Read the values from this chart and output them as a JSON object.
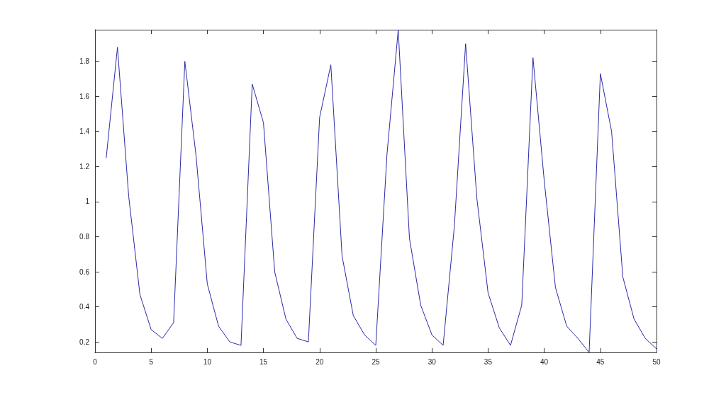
{
  "chart_data": {
    "type": "line",
    "x": [
      1,
      2,
      3,
      4,
      5,
      6,
      7,
      8,
      9,
      10,
      11,
      12,
      13,
      14,
      15,
      16,
      17,
      18,
      19,
      20,
      21,
      22,
      23,
      24,
      25,
      26,
      27,
      28,
      29,
      30,
      31,
      32,
      33,
      34,
      35,
      36,
      37,
      38,
      39,
      40,
      41,
      42,
      43,
      44,
      45,
      46,
      47,
      48,
      49,
      50
    ],
    "series": [
      {
        "color": "#2a2aa8",
        "values": [
          1.25,
          1.88,
          1.03,
          0.47,
          0.27,
          0.22,
          0.31,
          1.8,
          1.26,
          0.53,
          0.29,
          0.2,
          0.18,
          1.67,
          1.45,
          0.6,
          0.33,
          0.22,
          0.2,
          1.48,
          1.78,
          0.69,
          0.35,
          0.24,
          0.18,
          1.27,
          1.98,
          0.79,
          0.41,
          0.24,
          0.18,
          0.86,
          1.9,
          1.02,
          0.48,
          0.28,
          0.18,
          0.41,
          1.82,
          1.12,
          0.51,
          0.29,
          0.22,
          0.14,
          1.73,
          1.4,
          0.57,
          0.33,
          0.22,
          0.16
        ]
      }
    ],
    "xlim": [
      0,
      50
    ],
    "xticks": [
      0,
      5,
      10,
      15,
      20,
      25,
      30,
      35,
      40,
      45,
      50
    ],
    "ylim": [
      0.14,
      1.98
    ],
    "yticks": [
      0.2,
      0.4,
      0.6,
      0.8,
      1,
      1.2,
      1.4,
      1.6,
      1.8
    ],
    "grid": false,
    "marker": "none",
    "line_style": "solid"
  }
}
